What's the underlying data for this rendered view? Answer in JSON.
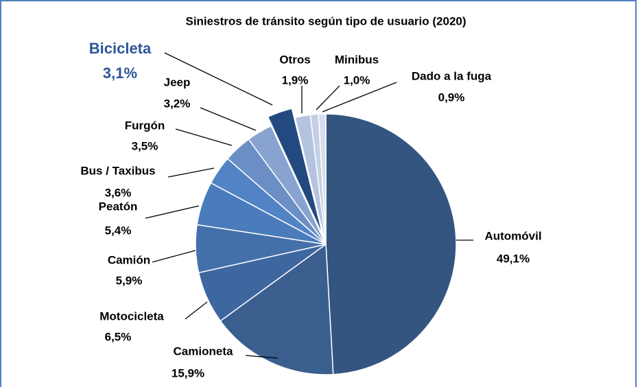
{
  "chart_data": {
    "type": "pie",
    "title": "Siniestros de tránsito según tipo de usuario (2020)",
    "categories": [
      "Automóvil",
      "Camioneta",
      "Motocicleta",
      "Camión",
      "Peatón",
      "Bus / Taxibus",
      "Furgón",
      "Jeep",
      "Bicicleta",
      "Otros",
      "Minibus",
      "Dado a la fuga"
    ],
    "values": [
      49.1,
      15.9,
      6.5,
      5.9,
      5.4,
      3.6,
      3.5,
      3.2,
      3.1,
      1.9,
      1.0,
      0.9
    ],
    "value_labels": [
      "49,1%",
      "15,9%",
      "6,5%",
      "5,9%",
      "5,4%",
      "3,6%",
      "3,5%",
      "3,2%",
      "3,1%",
      "1,9%",
      "1,0%",
      "0,9%"
    ],
    "colors": [
      "#335580",
      "#3a5f8f",
      "#3e67a0",
      "#4470aa",
      "#4a7bbb",
      "#5283c4",
      "#6b8fc5",
      "#88a3cf",
      "#234a80",
      "#b4c3e0",
      "#c5d0e6",
      "#d5deee"
    ]
  }
}
